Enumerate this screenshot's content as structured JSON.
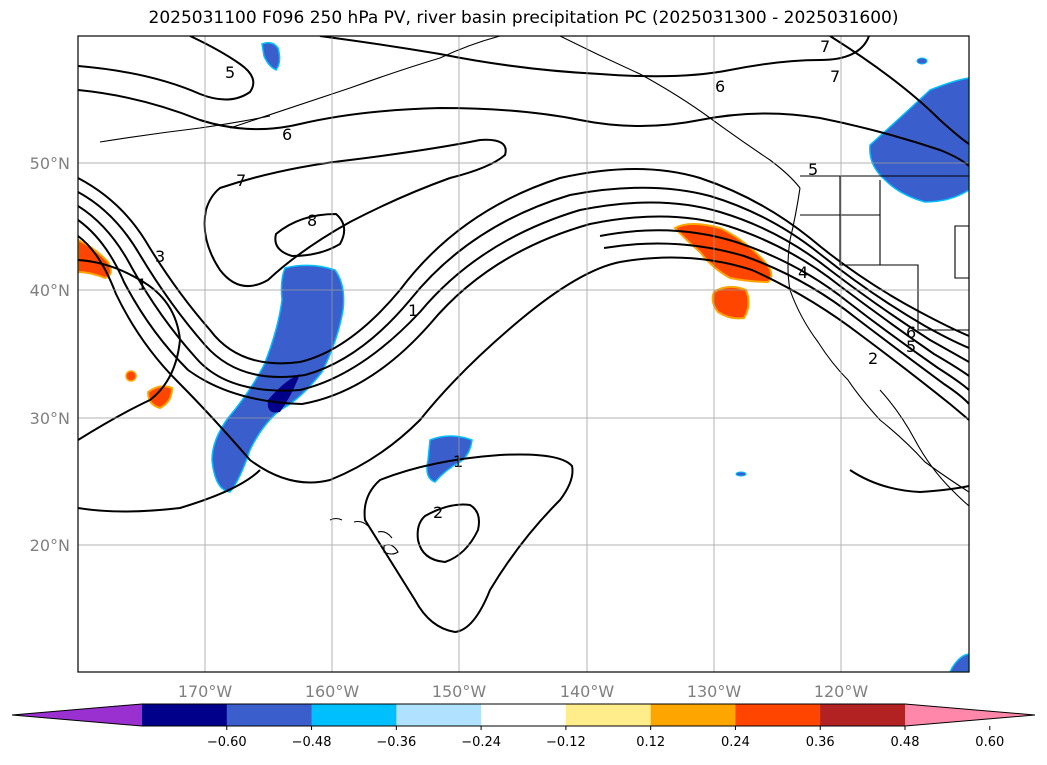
{
  "title": "2025031100 F096 250 hPa PV, river basin precipitation PC (2025031300 - 2025031600)",
  "lat_ticks": [
    "50°N",
    "40°N",
    "30°N",
    "20°N"
  ],
  "lon_ticks": [
    "170°W",
    "160°W",
    "150°W",
    "140°W",
    "130°W",
    "120°W"
  ],
  "contour_labels": [
    "5",
    "6",
    "7",
    "7",
    "6",
    "7",
    "8",
    "3",
    "1",
    "1",
    "5",
    "4",
    "6",
    "5",
    "2",
    "1",
    "2"
  ],
  "colorbar": {
    "ticks": [
      "−0.60",
      "−0.48",
      "−0.36",
      "−0.24",
      "−0.12",
      "0.12",
      "0.24",
      "0.36",
      "0.48",
      "0.60"
    ],
    "colors": [
      "#9b30d0",
      "#00008b",
      "#3a5fcd",
      "#00bfff",
      "#b0e2ff",
      "#ffffff",
      "#ffec8b",
      "#ffa500",
      "#ff4500",
      "#b22222",
      "#ff88aa"
    ]
  }
}
